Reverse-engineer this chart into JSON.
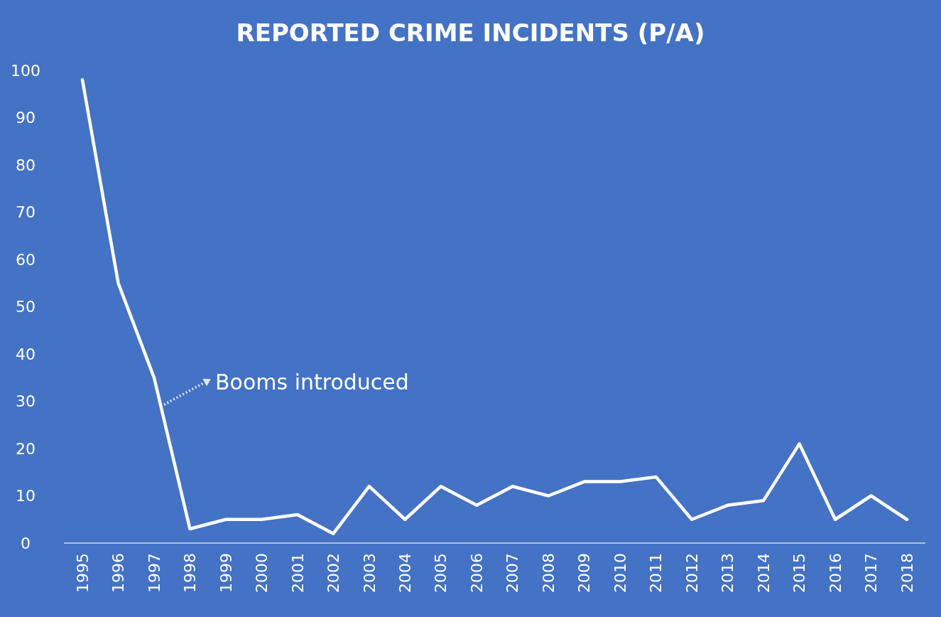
{
  "chart_data": {
    "type": "line",
    "title": "REPORTED CRIME INCIDENTS (P/A)",
    "categories": [
      "1995",
      "1996",
      "1997",
      "1998",
      "1999",
      "2000",
      "2001",
      "2002",
      "2003",
      "2004",
      "2005",
      "2006",
      "2007",
      "2008",
      "2009",
      "2010",
      "2011",
      "2012",
      "2013",
      "2014",
      "2015",
      "2016",
      "2017",
      "2018"
    ],
    "series": [
      {
        "color": "#ffffff",
        "values": [
          98,
          55,
          35,
          3,
          5,
          5,
          6,
          2,
          12,
          5,
          12,
          8,
          12,
          10,
          13,
          13,
          14,
          5,
          8,
          9,
          21,
          5,
          10,
          5
        ]
      }
    ],
    "ylim": [
      0,
      100
    ],
    "yticks": [
      0,
      10,
      20,
      30,
      40,
      50,
      60,
      70,
      80,
      90,
      100
    ],
    "grid": false,
    "marker": "none",
    "line_style": "solid",
    "annotations": [
      {
        "text": "Booms introduced",
        "x": "1997",
        "y": 35
      }
    ]
  }
}
